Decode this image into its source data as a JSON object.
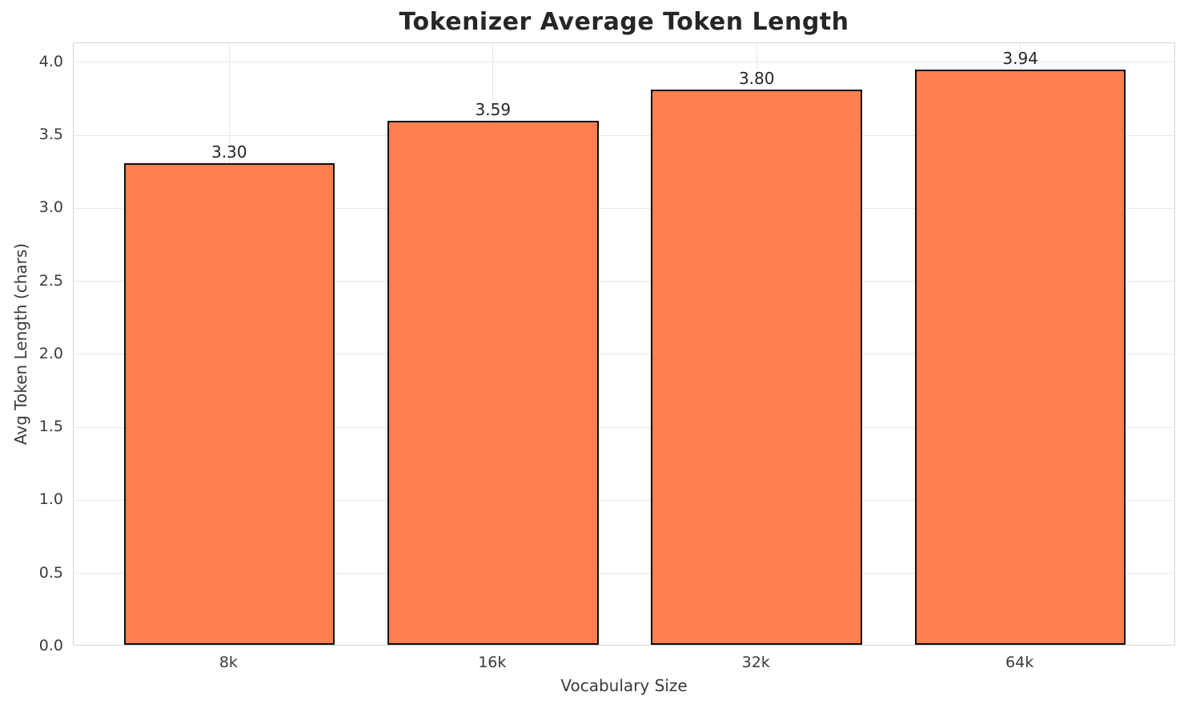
{
  "chart_data": {
    "type": "bar",
    "title": "Tokenizer Average Token Length",
    "xlabel": "Vocabulary Size",
    "ylabel": "Avg Token Length (chars)",
    "categories": [
      "8k",
      "16k",
      "32k",
      "64k"
    ],
    "values": [
      3.3,
      3.59,
      3.8,
      3.94
    ],
    "value_labels": [
      "3.30",
      "3.59",
      "3.80",
      "3.94"
    ],
    "ytick_labels": [
      "0.0",
      "0.5",
      "1.0",
      "1.5",
      "2.0",
      "2.5",
      "3.0",
      "3.5",
      "4.0"
    ],
    "yticks": [
      0.0,
      0.5,
      1.0,
      1.5,
      2.0,
      2.5,
      3.0,
      3.5,
      4.0
    ],
    "ylim": [
      0,
      4.13
    ],
    "xlim": [
      -0.59,
      3.59
    ],
    "bar_width_units": 0.8,
    "grid": "on",
    "legend": "none",
    "colors": {
      "bar_fill": "#ff7f50",
      "bar_edge": "#0d0d0d",
      "grid_line": "#e7e7e7",
      "spine": "#d5d5d5",
      "title_text": "#262626",
      "tick_text": "#3a3a3a"
    }
  }
}
